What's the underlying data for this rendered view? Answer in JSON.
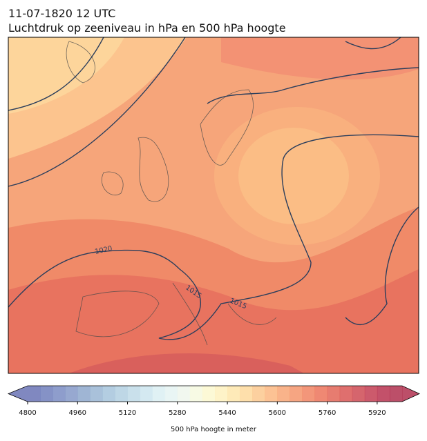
{
  "header": {
    "title": "11-07-1820 12 UTC",
    "subtitle": "Luchtdruk op zeeniveau in hPa en 500 hPa hoogte"
  },
  "map": {
    "contour_labels": [
      "1020",
      "1015",
      "1015"
    ]
  },
  "colorbar": {
    "label": "500 hPa hoogte in meter",
    "lim": [
      4800,
      6000
    ],
    "ticks": [
      4800,
      4960,
      5120,
      5280,
      5440,
      5600,
      5760,
      5920
    ],
    "colors": [
      "#6a73b5",
      "#707fbc",
      "#7a8cc3",
      "#8599c8",
      "#8ea8cd",
      "#9ab6d4",
      "#a6c4dc",
      "#b3d0e2",
      "#c0dbe8",
      "#cde5ee",
      "#daeef2",
      "#e5f3f2",
      "#eef6ec",
      "#f6f9df",
      "#fcf8cf",
      "#fef1be",
      "#fee6ab",
      "#fed99c",
      "#fcc88e",
      "#fbb781",
      "#f8a676",
      "#f5956c",
      "#f18463",
      "#ec735b",
      "#e36557",
      "#d95655",
      "#ce4a53",
      "#c33d52",
      "#b83350",
      "#b0304f"
    ]
  }
}
